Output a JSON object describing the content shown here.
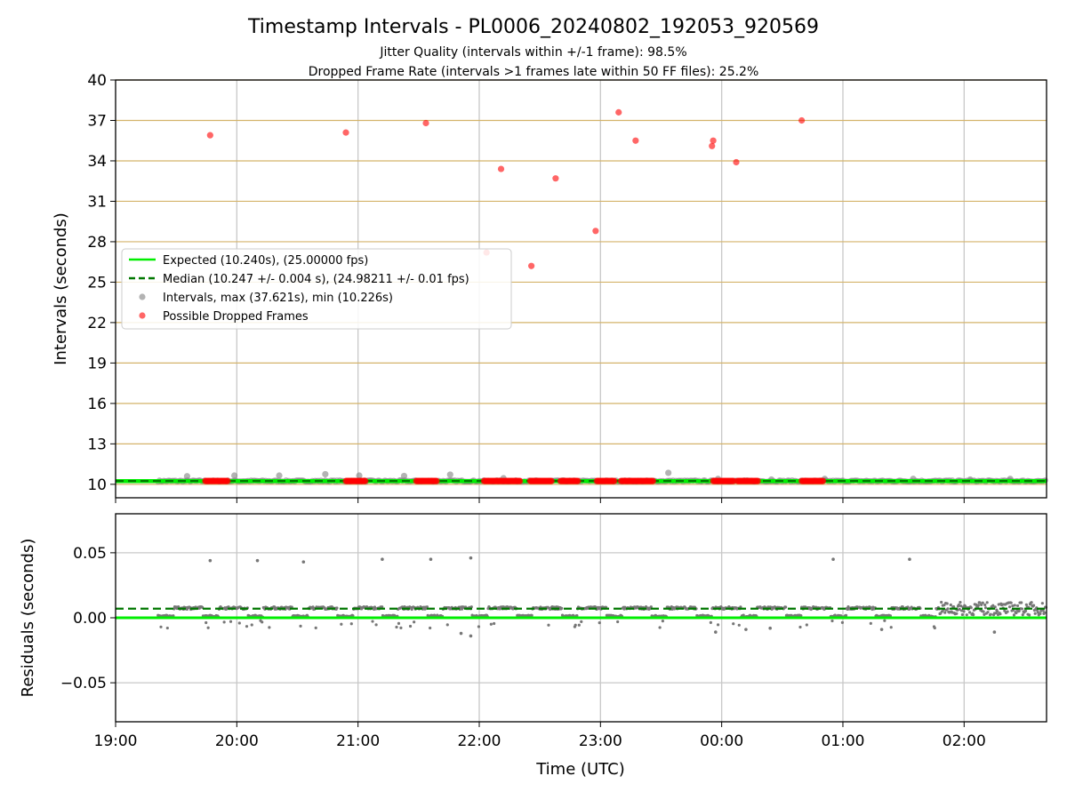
{
  "chart_data": {
    "type": "scatter",
    "title": "Timestamp Intervals - PL0006_20240802_192053_920569",
    "subtitle_lines": [
      "Jitter Quality (intervals within +/-1 frame): 98.5%",
      "Dropped Frame Rate (intervals >1 frames late within 50 FF files): 25.2%"
    ],
    "xlabel": "Time (UTC)",
    "x_unit": "hours since 19:00 UTC",
    "xlim": [
      0,
      7.68
    ],
    "x_ticks": [
      {
        "x": 0,
        "label": "19:00"
      },
      {
        "x": 1,
        "label": "20:00"
      },
      {
        "x": 2,
        "label": "21:00"
      },
      {
        "x": 3,
        "label": "22:00"
      },
      {
        "x": 4,
        "label": "23:00"
      },
      {
        "x": 5,
        "label": "00:00"
      },
      {
        "x": 6,
        "label": "01:00"
      },
      {
        "x": 7,
        "label": "02:00"
      }
    ],
    "colors": {
      "expected": "#00ee00",
      "median": "#007700",
      "intervals": "#808080",
      "dropped": "#ff0000",
      "hgrid_top": "#d4b36a",
      "grid": "#c8c8c8"
    },
    "top_panel": {
      "ylabel": "Intervals (seconds)",
      "ylim": [
        9,
        40
      ],
      "y_ticks": [
        10,
        13,
        16,
        19,
        22,
        25,
        28,
        31,
        34,
        37,
        40
      ],
      "expected_y": 10.24,
      "median_y": 10.247,
      "interval_series_range": [
        0.35,
        7.68
      ],
      "interval_outliers": [
        [
          0.59,
          10.6
        ],
        [
          0.98,
          10.65
        ],
        [
          1.35,
          10.65
        ],
        [
          1.73,
          10.75
        ],
        [
          2.01,
          10.65
        ],
        [
          2.38,
          10.62
        ],
        [
          2.76,
          10.72
        ],
        [
          3.2,
          10.45
        ],
        [
          4.56,
          10.85
        ],
        [
          4.97,
          10.4
        ],
        [
          5.41,
          10.35
        ],
        [
          5.85,
          10.4
        ],
        [
          6.58,
          10.4
        ],
        [
          7.05,
          10.35
        ],
        [
          7.38,
          10.4
        ]
      ],
      "dropped_points": [
        [
          0.78,
          35.9
        ],
        [
          2.56,
          36.8
        ],
        [
          1.9,
          36.1
        ],
        [
          3.06,
          27.2
        ],
        [
          3.18,
          33.4
        ],
        [
          3.43,
          26.2
        ],
        [
          3.63,
          32.7
        ],
        [
          3.96,
          28.8
        ],
        [
          4.15,
          37.6
        ],
        [
          4.29,
          35.5
        ],
        [
          4.93,
          35.5
        ],
        [
          4.92,
          35.1
        ],
        [
          5.12,
          33.9
        ],
        [
          5.66,
          37.0
        ]
      ],
      "dropped_bands": [
        [
          0.74,
          0.93
        ],
        [
          1.9,
          2.06
        ],
        [
          2.48,
          2.65
        ],
        [
          3.04,
          3.34
        ],
        [
          3.42,
          3.6
        ],
        [
          3.67,
          3.82
        ],
        [
          3.97,
          4.12
        ],
        [
          4.17,
          4.44
        ],
        [
          4.93,
          5.1
        ],
        [
          5.13,
          5.3
        ],
        [
          5.66,
          5.84
        ]
      ],
      "legend": {
        "position": "center-left",
        "entries": [
          {
            "label": "Expected (10.240s), (25.00000 fps)",
            "style": "solid-line"
          },
          {
            "label": "Median (10.247 +/- 0.004 s), (24.98211 +/- 0.01 fps)",
            "style": "dashed-line"
          },
          {
            "label": "Intervals, max (37.621s), min (10.226s)",
            "style": "gray-dot"
          },
          {
            "label": "Possible Dropped Frames",
            "style": "red-dot"
          }
        ]
      }
    },
    "bottom_panel": {
      "ylabel": "Residuals (seconds)",
      "ylim": [
        -0.08,
        0.08
      ],
      "y_ticks": [
        {
          "y": 0.05,
          "label": "0.05"
        },
        {
          "y": 0.0,
          "label": "0.00"
        },
        {
          "y": -0.05,
          "label": "−0.05"
        }
      ],
      "expected_y": 0.0,
      "median_y": 0.007,
      "outliers": [
        [
          0.78,
          0.044
        ],
        [
          1.17,
          0.044
        ],
        [
          1.55,
          0.043
        ],
        [
          2.2,
          0.045
        ],
        [
          2.6,
          0.045
        ],
        [
          2.93,
          0.046
        ],
        [
          5.92,
          0.045
        ],
        [
          6.55,
          0.045
        ],
        [
          2.93,
          -0.014
        ],
        [
          2.85,
          -0.012
        ],
        [
          4.95,
          -0.011
        ],
        [
          5.2,
          -0.009
        ],
        [
          5.4,
          -0.008
        ],
        [
          6.32,
          -0.009
        ],
        [
          7.25,
          -0.011
        ]
      ]
    }
  }
}
